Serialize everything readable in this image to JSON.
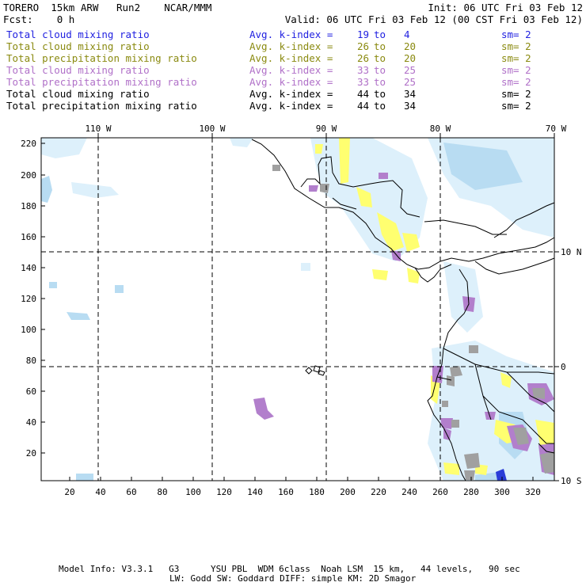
{
  "header": {
    "left_line1": "TORERO  15km ARW   Run2    NCAR/MMM",
    "right_line1": "Init: 06 UTC Fri 03 Feb 12",
    "left_line2": "Fcst:    0 h",
    "right_line2": "Valid: 06 UTC Fri 03 Feb 12 (00 CST Fri 03 Feb 12)"
  },
  "legend": [
    {
      "field": "Total cloud mixing ratio",
      "avg": "Avg. k-index =",
      "k1": "19",
      "to": "to",
      "k2": "4",
      "sm": "sm= 2",
      "color": "#1f1fe0"
    },
    {
      "field": "Total cloud mixing ratio",
      "avg": "Avg. k-index =",
      "k1": "26",
      "to": "to",
      "k2": "20",
      "sm": "sm= 2",
      "color": "#8a8a10"
    },
    {
      "field": "Total precipitation mixing ratio",
      "avg": "Avg. k-index =",
      "k1": "26",
      "to": "to",
      "k2": "20",
      "sm": "sm= 2",
      "color": "#8a8a10"
    },
    {
      "field": "Total cloud mixing ratio",
      "avg": "Avg. k-index =",
      "k1": "33",
      "to": "to",
      "k2": "25",
      "sm": "sm= 2",
      "color": "#b070c8"
    },
    {
      "field": "Total precipitation mixing ratio",
      "avg": "Avg. k-index =",
      "k1": "33",
      "to": "to",
      "k2": "25",
      "sm": "sm= 2",
      "color": "#b070c8"
    },
    {
      "field": "Total cloud mixing ratio",
      "avg": "Avg. k-index =",
      "k1": "44",
      "to": "to",
      "k2": "34",
      "sm": "sm= 2",
      "color": "#000000"
    },
    {
      "field": "Total precipitation mixing ratio",
      "avg": "Avg. k-index =",
      "k1": "44",
      "to": "to",
      "k2": "34",
      "sm": "sm= 2",
      "color": "#000000"
    }
  ],
  "map": {
    "longitude_labels": [
      "110 W",
      "100 W",
      "90 W",
      "80 W",
      "70 W"
    ],
    "latitude_labels": [
      "10 N",
      "0",
      "10 S"
    ],
    "y_axis_ticks": [
      "220",
      "200",
      "180",
      "160",
      "140",
      "120",
      "100",
      "80",
      "60",
      "40",
      "20"
    ],
    "x_axis_ticks": [
      "20",
      "40",
      "60",
      "80",
      "100",
      "120",
      "140",
      "160",
      "180",
      "200",
      "220",
      "240",
      "260",
      "280",
      "300",
      "320"
    ],
    "x_range": [
      0,
      335
    ],
    "y_range": [
      0,
      224
    ],
    "colors": {
      "light_blue": "#ddf0fb",
      "mid_blue": "#b8dcf2",
      "dark_blue": "#2a3cd8",
      "yellow": "#ffff70",
      "purple": "#b27fcc",
      "gray": "#a0a0a0",
      "grid": "#000000"
    }
  },
  "footer": {
    "line1": "Model Info: V3.3.1   G3      YSU PBL  WDM 6class  Noah LSM  15 km,   44 levels,   90 sec",
    "line2": "LW: Godd SW: Goddard DIFF: simple KM: 2D Smagor"
  }
}
